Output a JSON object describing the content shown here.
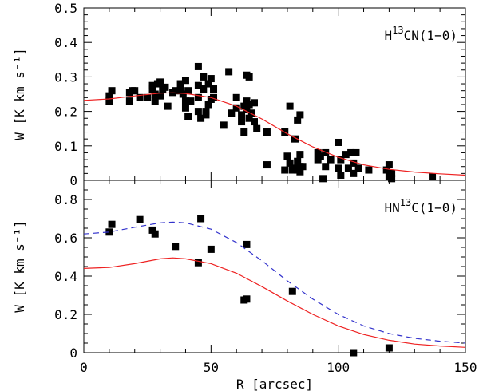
{
  "chart_data": [
    {
      "type": "scatter",
      "panel_label_main": "H",
      "panel_label_sup": "13",
      "panel_label_rest": "CN(1−0)",
      "ylabel": "W [K km s⁻¹]",
      "xlim": [
        0,
        150
      ],
      "ylim": [
        0,
        0.5
      ],
      "y_ticks": [
        "0",
        "0.1",
        "0.2",
        "0.3",
        "0.4",
        "0.5"
      ],
      "x_ticks": [
        "0",
        "50",
        "100",
        "150"
      ],
      "series": [
        {
          "type": "scatter",
          "marker": "square",
          "color": "#000000",
          "points": [
            [
              10,
              0.23
            ],
            [
              10,
              0.245
            ],
            [
              11,
              0.26
            ],
            [
              18,
              0.23
            ],
            [
              18,
              0.255
            ],
            [
              19,
              0.26
            ],
            [
              20,
              0.26
            ],
            [
              22,
              0.24
            ],
            [
              25,
              0.24
            ],
            [
              27,
              0.265
            ],
            [
              27,
              0.275
            ],
            [
              28,
              0.25
            ],
            [
              28,
              0.23
            ],
            [
              29,
              0.28
            ],
            [
              30,
              0.245
            ],
            [
              30,
              0.285
            ],
            [
              31,
              0.265
            ],
            [
              32,
              0.27
            ],
            [
              33,
              0.215
            ],
            [
              35,
              0.255
            ],
            [
              36,
              0.26
            ],
            [
              38,
              0.28
            ],
            [
              38,
              0.26
            ],
            [
              39,
              0.25
            ],
            [
              40,
              0.29
            ],
            [
              40,
              0.23
            ],
            [
              40,
              0.21
            ],
            [
              41,
              0.185
            ],
            [
              41,
              0.26
            ],
            [
              42,
              0.23
            ],
            [
              45,
              0.33
            ],
            [
              45,
              0.275
            ],
            [
              45,
              0.2
            ],
            [
              45,
              0.24
            ],
            [
              46,
              0.18
            ],
            [
              47,
              0.3
            ],
            [
              47,
              0.265
            ],
            [
              48,
              0.19
            ],
            [
              48,
              0.2
            ],
            [
              49,
              0.22
            ],
            [
              49,
              0.28
            ],
            [
              50,
              0.295
            ],
            [
              50,
              0.235
            ],
            [
              51,
              0.265
            ],
            [
              51,
              0.24
            ],
            [
              55,
              0.16
            ],
            [
              57,
              0.315
            ],
            [
              58,
              0.195
            ],
            [
              60,
              0.21
            ],
            [
              60,
              0.24
            ],
            [
              62,
              0.17
            ],
            [
              62,
              0.19
            ],
            [
              63,
              0.14
            ],
            [
              63,
              0.215
            ],
            [
              64,
              0.205
            ],
            [
              64,
              0.23
            ],
            [
              64,
              0.305
            ],
            [
              65,
              0.18
            ],
            [
              65,
              0.3
            ],
            [
              65,
              0.22
            ],
            [
              66,
              0.195
            ],
            [
              67,
              0.17
            ],
            [
              67,
              0.225
            ],
            [
              68,
              0.15
            ],
            [
              72,
              0.14
            ],
            [
              72,
              0.045
            ],
            [
              79,
              0.14
            ],
            [
              79,
              0.03
            ],
            [
              80,
              0.07
            ],
            [
              81,
              0.215
            ],
            [
              81,
              0.05
            ],
            [
              82,
              0.03
            ],
            [
              83,
              0.035
            ],
            [
              83,
              0.12
            ],
            [
              84,
              0.03
            ],
            [
              84,
              0.175
            ],
            [
              84,
              0.055
            ],
            [
              85,
              0.04
            ],
            [
              85,
              0.19
            ],
            [
              85,
              0.075
            ],
            [
              85,
              0.025
            ],
            [
              86,
              0.04
            ],
            [
              92,
              0.08
            ],
            [
              92,
              0.06
            ],
            [
              93,
              0.07
            ],
            [
              94,
              0.005
            ],
            [
              95,
              0.08
            ],
            [
              95,
              0.04
            ],
            [
              97,
              0.06
            ],
            [
              100,
              0.11
            ],
            [
              100,
              0.035
            ],
            [
              101,
              0.015
            ],
            [
              101,
              0.06
            ],
            [
              103,
              0.075
            ],
            [
              104,
              0.035
            ],
            [
              105,
              0.08
            ],
            [
              106,
              0.05
            ],
            [
              106,
              0.02
            ],
            [
              107,
              0.08
            ],
            [
              108,
              0.035
            ],
            [
              112,
              0.03
            ],
            [
              119,
              0.03
            ],
            [
              120,
              0.01
            ],
            [
              120,
              0.045
            ],
            [
              121,
              0.02
            ],
            [
              121,
              0.005
            ],
            [
              137,
              0.01
            ]
          ]
        },
        {
          "type": "line",
          "style": "solid",
          "color": "#ee2222",
          "points": [
            [
              0,
              0.232
            ],
            [
              10,
              0.236
            ],
            [
              20,
              0.245
            ],
            [
              30,
              0.253
            ],
            [
              35,
              0.254
            ],
            [
              40,
              0.252
            ],
            [
              50,
              0.24
            ],
            [
              60,
              0.215
            ],
            [
              70,
              0.178
            ],
            [
              80,
              0.135
            ],
            [
              90,
              0.097
            ],
            [
              100,
              0.067
            ],
            [
              110,
              0.045
            ],
            [
              120,
              0.032
            ],
            [
              130,
              0.024
            ],
            [
              140,
              0.019
            ],
            [
              150,
              0.015
            ]
          ]
        }
      ]
    },
    {
      "type": "scatter",
      "panel_label_main": "HN",
      "panel_label_sup": "13",
      "panel_label_rest": "C(1−0)",
      "ylabel": "W [K km s⁻¹]",
      "xlabel": "R [arcsec]",
      "xlim": [
        0,
        150
      ],
      "ylim": [
        0,
        0.9
      ],
      "y_ticks": [
        "0",
        "0.2",
        "0.4",
        "0.6",
        "0.8"
      ],
      "x_ticks": [
        "0",
        "50",
        "100",
        "150"
      ],
      "series": [
        {
          "type": "scatter",
          "marker": "square",
          "color": "#000000",
          "points": [
            [
              10,
              0.63
            ],
            [
              11,
              0.67
            ],
            [
              22,
              0.695
            ],
            [
              27,
              0.64
            ],
            [
              28,
              0.62
            ],
            [
              36,
              0.555
            ],
            [
              45,
              0.47
            ],
            [
              46,
              0.7
            ],
            [
              50,
              0.54
            ],
            [
              63,
              0.275
            ],
            [
              64,
              0.28
            ],
            [
              64,
              0.565
            ],
            [
              82,
              0.32
            ],
            [
              106,
              0.0
            ],
            [
              120,
              0.025
            ]
          ]
        },
        {
          "type": "line",
          "style": "dashed",
          "color": "#3333cc",
          "points": [
            [
              0,
              0.62
            ],
            [
              10,
              0.63
            ],
            [
              20,
              0.655
            ],
            [
              30,
              0.678
            ],
            [
              35,
              0.682
            ],
            [
              40,
              0.678
            ],
            [
              50,
              0.645
            ],
            [
              60,
              0.575
            ],
            [
              70,
              0.48
            ],
            [
              80,
              0.375
            ],
            [
              90,
              0.28
            ],
            [
              100,
              0.2
            ],
            [
              110,
              0.14
            ],
            [
              120,
              0.1
            ],
            [
              130,
              0.075
            ],
            [
              140,
              0.06
            ],
            [
              150,
              0.05
            ]
          ]
        },
        {
          "type": "line",
          "style": "solid",
          "color": "#ee2222",
          "points": [
            [
              0,
              0.44
            ],
            [
              10,
              0.445
            ],
            [
              20,
              0.465
            ],
            [
              30,
              0.49
            ],
            [
              35,
              0.495
            ],
            [
              40,
              0.49
            ],
            [
              50,
              0.465
            ],
            [
              60,
              0.415
            ],
            [
              70,
              0.345
            ],
            [
              80,
              0.27
            ],
            [
              90,
              0.2
            ],
            [
              100,
              0.14
            ],
            [
              110,
              0.095
            ],
            [
              120,
              0.065
            ],
            [
              130,
              0.045
            ],
            [
              140,
              0.035
            ],
            [
              150,
              0.028
            ]
          ]
        }
      ]
    }
  ]
}
